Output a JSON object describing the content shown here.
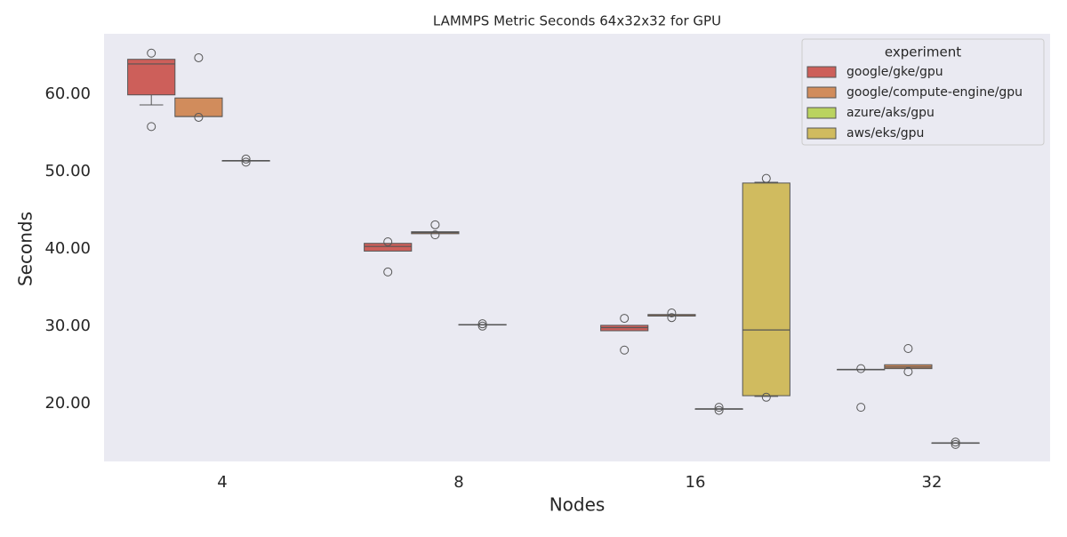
{
  "chart_data": {
    "type": "box",
    "title": "LAMMPS Metric Seconds 64x32x32 for GPU",
    "x_label": "Nodes",
    "y_label": "Seconds",
    "categories": [
      "4",
      "8",
      "16",
      "32"
    ],
    "ylim": [
      12.5,
      67.8
    ],
    "yticks": [
      {
        "value": 20,
        "label": "20.00"
      },
      {
        "value": 30,
        "label": "30.00"
      },
      {
        "value": 40,
        "label": "40.00"
      },
      {
        "value": 50,
        "label": "50.00"
      },
      {
        "value": 60,
        "label": "60.00"
      }
    ],
    "grid": false,
    "legend": {
      "title": "experiment",
      "position": "upper right"
    },
    "series": [
      {
        "name": "google/gke/gpu",
        "color": "#cd5f5a",
        "boxes": [
          {
            "whislo": 58.6,
            "q1": 59.9,
            "median": 63.9,
            "q3": 64.5,
            "whishi": 64.5,
            "fliers": [
              65.3,
              55.8
            ]
          },
          {
            "whislo": 39.7,
            "q1": 39.7,
            "median": 40.3,
            "q3": 40.7,
            "whishi": 40.7,
            "fliers": [
              40.9,
              37.0
            ]
          },
          {
            "whislo": 29.4,
            "q1": 29.4,
            "median": 29.8,
            "q3": 30.1,
            "whishi": 30.1,
            "fliers": [
              31.0,
              26.9
            ]
          },
          {
            "whislo": 24.4,
            "q1": 24.4,
            "median": 24.4,
            "q3": 24.4,
            "whishi": 24.4,
            "fliers": [
              24.5,
              19.5
            ]
          }
        ]
      },
      {
        "name": "google/compute-engine/gpu",
        "color": "#d18c5c",
        "boxes": [
          {
            "whislo": 57.1,
            "q1": 57.1,
            "median": 57.1,
            "q3": 59.5,
            "whishi": 59.5,
            "fliers": [
              64.7,
              57.0
            ]
          },
          {
            "whislo": 41.95,
            "q1": 41.95,
            "median": 42.1,
            "q3": 42.2,
            "whishi": 42.2,
            "fliers": [
              43.1,
              41.8
            ]
          },
          {
            "whislo": 31.3,
            "q1": 31.3,
            "median": 31.35,
            "q3": 31.5,
            "whishi": 31.5,
            "fliers": [
              31.7,
              31.1
            ]
          },
          {
            "whislo": 24.5,
            "q1": 24.5,
            "median": 24.7,
            "q3": 25.0,
            "whishi": 25.0,
            "fliers": [
              27.1,
              24.1
            ]
          }
        ]
      },
      {
        "name": "azure/aks/gpu",
        "color": "#bad35f",
        "boxes": [
          {
            "whislo": 51.4,
            "q1": 51.4,
            "median": 51.4,
            "q3": 51.4,
            "whishi": 51.4,
            "fliers": [
              51.6,
              51.2
            ]
          },
          {
            "whislo": 30.2,
            "q1": 30.2,
            "median": 30.2,
            "q3": 30.2,
            "whishi": 30.2,
            "fliers": [
              30.3,
              30.0
            ]
          },
          {
            "whislo": 19.3,
            "q1": 19.3,
            "median": 19.3,
            "q3": 19.3,
            "whishi": 19.3,
            "fliers": [
              19.5,
              19.1
            ]
          },
          {
            "whislo": 14.9,
            "q1": 14.9,
            "median": 14.9,
            "q3": 14.9,
            "whishi": 14.9,
            "fliers": [
              15.0,
              14.7
            ]
          }
        ]
      },
      {
        "name": "aws/eks/gpu",
        "color": "#d0bb5f",
        "boxes": [
          null,
          null,
          {
            "whislo": 20.9,
            "q1": 21.0,
            "median": 29.5,
            "q3": 48.5,
            "whishi": 48.6,
            "fliers": [
              49.1,
              20.8
            ]
          },
          null
        ]
      }
    ]
  }
}
